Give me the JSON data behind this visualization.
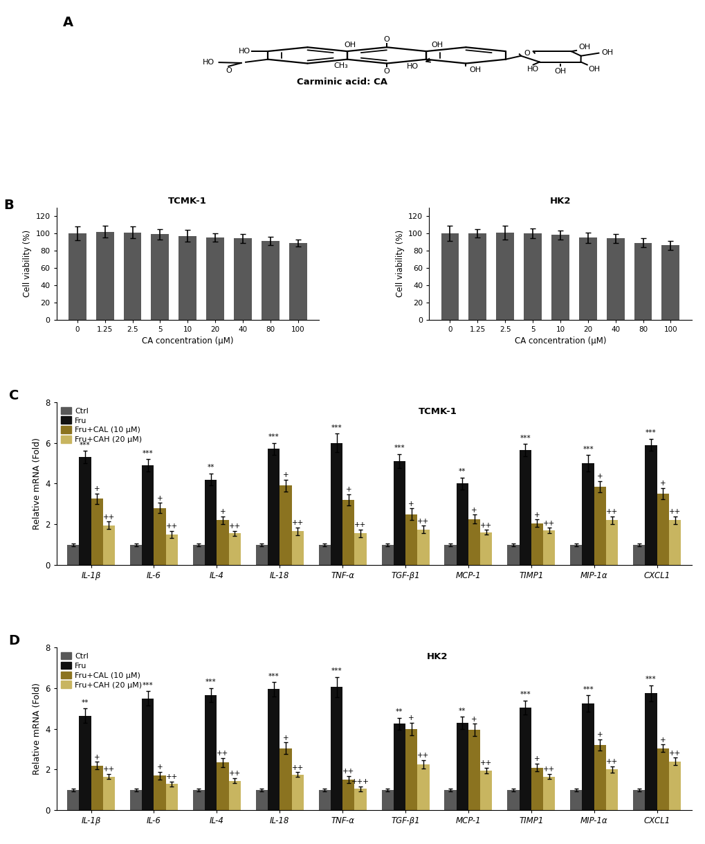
{
  "panel_B": {
    "tcmk1": {
      "title": "TCMK-1",
      "x_labels": [
        "0",
        "1.25",
        "2.5",
        "5",
        "10",
        "20",
        "40",
        "80",
        "100"
      ],
      "values": [
        100,
        102,
        101,
        99,
        97,
        95,
        94,
        91,
        89
      ],
      "errors": [
        8,
        7,
        7,
        6,
        7,
        5,
        5,
        5,
        4
      ],
      "bar_color": "#595959",
      "ylabel": "Cell viability (%)",
      "xlabel": "CA concentration (μM)",
      "ylim": [
        0,
        130
      ],
      "yticks": [
        0,
        20,
        40,
        60,
        80,
        100,
        120
      ]
    },
    "hk2": {
      "title": "HK2",
      "x_labels": [
        "0",
        "1.25",
        "2.5",
        "5",
        "10",
        "20",
        "40",
        "80",
        "100"
      ],
      "values": [
        100,
        100,
        101,
        100,
        98,
        95,
        94,
        89,
        86
      ],
      "errors": [
        9,
        5,
        8,
        6,
        5,
        6,
        5,
        5,
        5
      ],
      "bar_color": "#595959",
      "ylabel": "Cell viability (%)",
      "xlabel": "CA concentration (μM)",
      "ylim": [
        0,
        130
      ],
      "yticks": [
        0,
        20,
        40,
        60,
        80,
        100,
        120
      ]
    }
  },
  "panel_C": {
    "title": "TCMK-1",
    "genes": [
      "IL-1β",
      "IL-6",
      "IL-4",
      "IL-18",
      "TNF-α",
      "TGF-β1",
      "MCP-1",
      "TIMP1",
      "MIP-1α",
      "CXCL1"
    ],
    "ctrl": [
      1.0,
      1.0,
      1.0,
      1.0,
      1.0,
      1.0,
      1.0,
      1.0,
      1.0,
      1.0
    ],
    "fru": [
      5.3,
      4.9,
      4.2,
      5.7,
      6.0,
      5.1,
      4.0,
      5.65,
      5.0,
      5.9
    ],
    "fru_cal": [
      3.25,
      2.8,
      2.2,
      3.9,
      3.2,
      2.5,
      2.25,
      2.05,
      3.85,
      3.5
    ],
    "fru_cah": [
      1.95,
      1.5,
      1.55,
      1.65,
      1.55,
      1.75,
      1.6,
      1.7,
      2.2,
      2.2
    ],
    "ctrl_err": [
      0.07,
      0.07,
      0.07,
      0.07,
      0.07,
      0.07,
      0.07,
      0.07,
      0.07,
      0.07
    ],
    "fru_err": [
      0.3,
      0.3,
      0.3,
      0.3,
      0.45,
      0.35,
      0.3,
      0.3,
      0.4,
      0.3
    ],
    "fru_cal_err": [
      0.25,
      0.25,
      0.18,
      0.3,
      0.28,
      0.28,
      0.22,
      0.18,
      0.28,
      0.28
    ],
    "fru_cah_err": [
      0.18,
      0.18,
      0.12,
      0.18,
      0.18,
      0.18,
      0.12,
      0.12,
      0.18,
      0.18
    ],
    "fru_sig": [
      "***",
      "***",
      "**",
      "***",
      "***",
      "***",
      "**",
      "***",
      "***",
      "***"
    ],
    "cal_sig": [
      "+",
      "+",
      "+",
      "+",
      "+",
      "+",
      "+",
      "+",
      "+",
      "+"
    ],
    "cah_sig": [
      "++",
      "++",
      "++",
      "++",
      "++",
      "++",
      "++",
      "++",
      "++",
      "++"
    ],
    "ylabel": "Relative mRNA (Fold)",
    "ylim": [
      0,
      8
    ],
    "yticks": [
      0,
      2,
      4,
      6,
      8
    ]
  },
  "panel_D": {
    "title": "HK2",
    "genes": [
      "IL-1β",
      "IL-6",
      "IL-4",
      "IL-18",
      "TNF-α",
      "TGF-β1",
      "MCP-1",
      "TIMP1",
      "MIP-1α",
      "CXCL1"
    ],
    "ctrl": [
      1.0,
      1.0,
      1.0,
      1.0,
      1.0,
      1.0,
      1.0,
      1.0,
      1.0,
      1.0
    ],
    "fru": [
      4.65,
      5.5,
      5.65,
      5.95,
      6.05,
      4.25,
      4.3,
      5.05,
      5.25,
      5.75
    ],
    "fru_cal": [
      2.2,
      1.7,
      2.35,
      3.05,
      1.5,
      4.0,
      3.95,
      2.1,
      3.2,
      3.05
    ],
    "fru_cah": [
      1.65,
      1.3,
      1.45,
      1.75,
      1.05,
      2.25,
      1.95,
      1.65,
      2.0,
      2.4
    ],
    "ctrl_err": [
      0.07,
      0.07,
      0.07,
      0.07,
      0.07,
      0.07,
      0.07,
      0.07,
      0.07,
      0.07
    ],
    "fru_err": [
      0.35,
      0.35,
      0.35,
      0.35,
      0.5,
      0.3,
      0.3,
      0.35,
      0.4,
      0.4
    ],
    "fru_cal_err": [
      0.18,
      0.18,
      0.22,
      0.28,
      0.18,
      0.3,
      0.3,
      0.18,
      0.28,
      0.18
    ],
    "fru_cah_err": [
      0.12,
      0.12,
      0.12,
      0.12,
      0.12,
      0.2,
      0.15,
      0.12,
      0.15,
      0.18
    ],
    "fru_sig": [
      "**",
      "***",
      "***",
      "***",
      "***",
      "**",
      "**",
      "***",
      "***",
      "***"
    ],
    "cal_sig": [
      "+",
      "+",
      "++",
      "+",
      "++",
      "+",
      "+",
      "+",
      "+",
      "+"
    ],
    "cah_sig": [
      "++",
      "++",
      "++",
      "++",
      "+++",
      "++",
      "++",
      "++",
      "++",
      "++"
    ],
    "ylabel": "Relative mRNA (Fold)",
    "ylim": [
      0,
      8
    ],
    "yticks": [
      0,
      2,
      4,
      6,
      8
    ]
  },
  "colors": {
    "ctrl": "#595959",
    "fru": "#111111",
    "fru_cal": "#8B7320",
    "fru_cah": "#C8B560"
  },
  "legend_labels": [
    "Ctrl",
    "Fru",
    "Fru+CAL (10 μM)",
    "Fru+CAH (20 μM)"
  ]
}
